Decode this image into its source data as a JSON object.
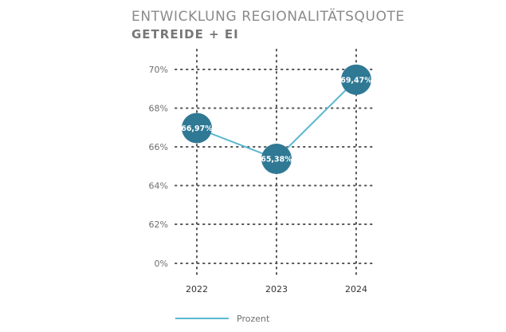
{
  "chart_data": {
    "type": "line",
    "title": "ENTWICKLUNG REGIONALITÄTSQUOTE",
    "subtitle": "GETREIDE + EI",
    "categories": [
      "2022",
      "2023",
      "2024"
    ],
    "y_ticks": [
      {
        "value": 0,
        "label": "0%"
      },
      {
        "value": 62,
        "label": "62%"
      },
      {
        "value": 64,
        "label": "64%"
      },
      {
        "value": 66,
        "label": "66%"
      },
      {
        "value": 68,
        "label": "68%"
      },
      {
        "value": 70,
        "label": "70%"
      }
    ],
    "axis_break": true,
    "grid": true,
    "series": [
      {
        "name": "Prozent",
        "values": [
          66.97,
          65.38,
          69.47
        ],
        "labels": [
          "66,97%",
          "65,38%",
          "69,47%"
        ]
      }
    ],
    "legend_position": "bottom",
    "colors": {
      "line": "#5bb8cf",
      "marker": "#2f7995",
      "grid": "#555555"
    }
  }
}
